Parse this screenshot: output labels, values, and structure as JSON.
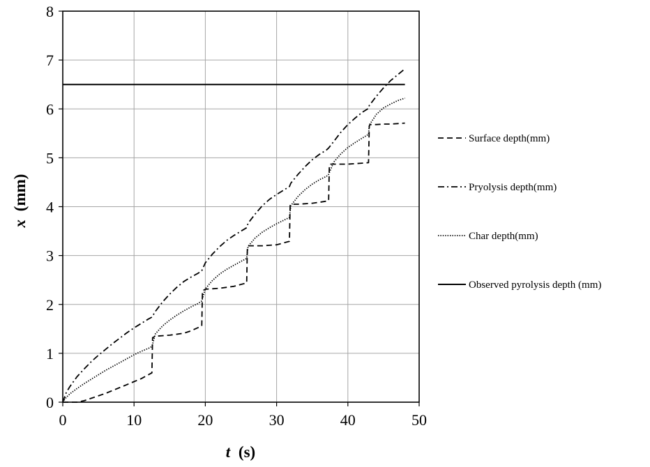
{
  "chart_data": {
    "type": "line",
    "xlabel_var": "t",
    "xlabel_unit": "(s)",
    "ylabel_var": "x",
    "ylabel_unit": "(mm)",
    "xlim": [
      0,
      50
    ],
    "ylim": [
      0,
      8
    ],
    "xticks": [
      0,
      10,
      20,
      30,
      40,
      50
    ],
    "yticks": [
      0,
      1,
      2,
      3,
      4,
      5,
      6,
      7,
      8
    ],
    "grid": true,
    "legend_position": "right",
    "series": [
      {
        "name": "Surface depth(mm)",
        "style": "dashed",
        "x": [
          0,
          1,
          2,
          3,
          4,
          5,
          6,
          7,
          8,
          9,
          10,
          11,
          12.5,
          12.6,
          13,
          14,
          15,
          16,
          17,
          18,
          19.5,
          19.6,
          20,
          21,
          22,
          23,
          24,
          25.8,
          25.9,
          26,
          27,
          28,
          29,
          30,
          31.8,
          31.9,
          32,
          33,
          34,
          35,
          36,
          37.3,
          37.4,
          37.5,
          38,
          39,
          40,
          41,
          42,
          42.9,
          43,
          43.1,
          44,
          45,
          46,
          47,
          48
        ],
        "y": [
          0,
          0,
          0,
          0.03,
          0.08,
          0.13,
          0.18,
          0.24,
          0.3,
          0.36,
          0.42,
          0.48,
          0.6,
          1.32,
          1.35,
          1.36,
          1.37,
          1.39,
          1.41,
          1.46,
          1.56,
          2.28,
          2.31,
          2.32,
          2.33,
          2.35,
          2.37,
          2.44,
          3.17,
          3.2,
          3.2,
          3.2,
          3.21,
          3.22,
          3.29,
          4.02,
          4.05,
          4.05,
          4.06,
          4.07,
          4.09,
          4.12,
          4.84,
          4.87,
          4.87,
          4.87,
          4.87,
          4.88,
          4.89,
          4.9,
          5.65,
          5.68,
          5.68,
          5.69,
          5.69,
          5.7,
          5.71
        ]
      },
      {
        "name": "Pryolysis depth(mm)",
        "style": "dashdot",
        "x": [
          0,
          0.5,
          1,
          2,
          3,
          4,
          5,
          6,
          7,
          8,
          9,
          10,
          11,
          12,
          12.5,
          13,
          14,
          15,
          16,
          17,
          18,
          19,
          19.5,
          20,
          21,
          22,
          23,
          24,
          25,
          25.8,
          26,
          27,
          28,
          29,
          30,
          31,
          31.8,
          32,
          33,
          34,
          35,
          36,
          37,
          37.3,
          38,
          39,
          40,
          41,
          42,
          42.9,
          43,
          44,
          45,
          46,
          47,
          48
        ],
        "y": [
          0,
          0.2,
          0.32,
          0.52,
          0.68,
          0.83,
          0.96,
          1.08,
          1.2,
          1.31,
          1.42,
          1.52,
          1.61,
          1.7,
          1.74,
          1.86,
          2.05,
          2.21,
          2.35,
          2.47,
          2.56,
          2.64,
          2.69,
          2.85,
          3.03,
          3.18,
          3.31,
          3.41,
          3.5,
          3.57,
          3.66,
          3.85,
          4.02,
          4.15,
          4.25,
          4.34,
          4.41,
          4.48,
          4.66,
          4.82,
          4.96,
          5.07,
          5.16,
          5.2,
          5.33,
          5.52,
          5.68,
          5.81,
          5.93,
          6.01,
          6.07,
          6.26,
          6.43,
          6.58,
          6.7,
          6.82
        ]
      },
      {
        "name": "Char depth(mm)",
        "style": "dotted",
        "x": [
          0,
          0.5,
          1,
          2,
          3,
          4,
          5,
          6,
          7,
          8,
          9,
          10,
          11,
          12,
          12.5,
          13,
          14,
          15,
          16,
          17,
          18,
          19,
          19.5,
          20,
          21,
          22,
          23,
          24,
          25,
          25.8,
          26,
          27,
          28,
          29,
          30,
          31,
          31.8,
          32,
          33,
          34,
          35,
          36,
          37,
          37.3,
          38,
          39,
          40,
          41,
          42,
          42.9,
          43,
          44,
          45,
          46,
          47,
          48
        ],
        "y": [
          0,
          0.1,
          0.17,
          0.28,
          0.38,
          0.47,
          0.56,
          0.65,
          0.73,
          0.81,
          0.89,
          0.97,
          1.04,
          1.1,
          1.14,
          1.4,
          1.56,
          1.68,
          1.78,
          1.87,
          1.95,
          2.02,
          2.07,
          2.32,
          2.49,
          2.62,
          2.72,
          2.8,
          2.88,
          2.94,
          3.19,
          3.36,
          3.48,
          3.57,
          3.65,
          3.72,
          3.78,
          4.02,
          4.21,
          4.35,
          4.46,
          4.55,
          4.62,
          4.66,
          4.91,
          5.08,
          5.21,
          5.31,
          5.4,
          5.48,
          5.67,
          5.89,
          6.02,
          6.1,
          6.17,
          6.22
        ]
      },
      {
        "name": "Observed pyrolysis depth (mm)",
        "style": "solid",
        "x": [
          0,
          48
        ],
        "y": [
          6.5,
          6.5
        ]
      }
    ]
  }
}
